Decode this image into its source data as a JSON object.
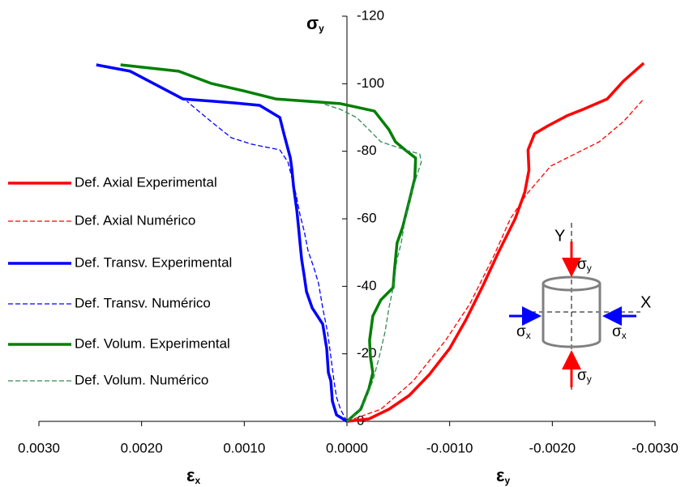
{
  "chart_data": {
    "type": "line",
    "y_label": {
      "symbol": "σ",
      "subscript": "y"
    },
    "x_label_left": {
      "symbol": "ε",
      "subscript": "x"
    },
    "x_label_right": {
      "symbol": "ε",
      "subscript": "y"
    },
    "xlim": [
      0.003,
      -0.003
    ],
    "ylim": [
      0,
      -120
    ],
    "xticks": [
      {
        "value": 0.003,
        "label": "0.0030"
      },
      {
        "value": 0.002,
        "label": "0.0020"
      },
      {
        "value": 0.001,
        "label": "0.0010"
      },
      {
        "value": 0,
        "label": "0.0000"
      },
      {
        "value": -0.001,
        "label": "-0.0010"
      },
      {
        "value": -0.002,
        "label": "-0.0020"
      },
      {
        "value": -0.003,
        "label": "-0.0030"
      }
    ],
    "yticks": [
      0,
      -20,
      -40,
      -60,
      -80,
      -100,
      -120
    ],
    "legend": "left",
    "series": [
      {
        "name": "Def. Axial Experimental",
        "color": "#ff0000",
        "style": "solid",
        "x": [
          0,
          -0.000213,
          -0.000409,
          -0.000606,
          -0.000803,
          -0.001,
          -0.001157,
          -0.001323,
          -0.001472,
          -0.001638,
          -0.001732,
          -0.001772,
          -0.001764,
          -0.001827,
          -0.001961,
          -0.002142,
          -0.002299,
          -0.002535,
          -0.002693,
          -0.00289
        ],
        "values": [
          0,
          -0.72,
          -3.6,
          -7.68,
          -13.9,
          -21.6,
          -30.0,
          -40.1,
          -49.9,
          -60.0,
          -67.9,
          -74.4,
          -80.4,
          -85.2,
          -87.6,
          -90.5,
          -92.4,
          -95.5,
          -100.8,
          -106.1
        ]
      },
      {
        "name": "Def. Axial Numérico",
        "color": "#ff0000",
        "style": "dashed",
        "x": [
          0,
          -0.000331,
          -0.000646,
          -0.000961,
          -0.001197,
          -0.001433,
          -0.001591,
          -0.001748,
          -0.001984,
          -0.00222,
          -0.002457,
          -0.002693,
          -0.00289
        ],
        "values": [
          0,
          -3.6,
          -12.0,
          -24.0,
          -34.8,
          -49.2,
          -60.0,
          -67.2,
          -75.6,
          -79.2,
          -82.8,
          -88.8,
          -95.5
        ]
      },
      {
        "name": "Def. Transv. Experimental",
        "color": "#0000ff",
        "style": "solid",
        "x": [
          0,
          0.000102,
          0.000142,
          0.000157,
          0.000181,
          0.000197,
          0.000236,
          0.000339,
          0.000394,
          0.000417,
          0.000441,
          0.000457,
          0.000472,
          0.000488,
          0.00052,
          0.000535,
          0.000551,
          0.000583,
          0.000614,
          0.000654,
          0.00085,
          0.001087,
          0.001598,
          0.00211,
          0.002441
        ],
        "values": [
          0,
          -1.92,
          -6.0,
          -12.0,
          -14.4,
          -21.6,
          -28.8,
          -33.6,
          -38.4,
          -43.2,
          -48.0,
          -52.8,
          -57.6,
          -62.4,
          -69.6,
          -74.4,
          -78.0,
          -81.6,
          -85.2,
          -90.0,
          -93.6,
          -94.3,
          -95.5,
          -103.7,
          -105.6
        ]
      },
      {
        "name": "Def. Transv. Numérico",
        "color": "#0000ff",
        "style": "dashed",
        "x": [
          0,
          6.3e-05,
          0.000102,
          0.000126,
          0.000157,
          0.000189,
          0.000236,
          0.000276,
          0.000323,
          0.000378,
          0.000417,
          0.000457,
          0.000496,
          0.000535,
          0.000575,
          0.000654,
          0.000929,
          0.001126,
          0.001323,
          0.001559
        ],
        "values": [
          0,
          -3.6,
          -7.2,
          -12.0,
          -19.2,
          -26.4,
          -33.6,
          -40.8,
          -45.6,
          -50.4,
          -56.4,
          -61.2,
          -67.2,
          -72.0,
          -76.8,
          -80.4,
          -82.1,
          -84.0,
          -88.8,
          -94.8
        ]
      },
      {
        "name": "Def. Volum. Experimental",
        "color": "#008000",
        "style": "solid",
        "x": [
          0,
          -0.000134,
          -0.000213,
          -0.000252,
          -0.000228,
          -0.00022,
          -0.000252,
          -0.000331,
          -0.000449,
          -0.000465,
          -0.000488,
          -0.000543,
          -0.000583,
          -0.000622,
          -0.000661,
          -0.000669,
          -0.000567,
          -0.000472,
          -0.000409,
          -0.000268,
          6.3e-05,
          0.000693,
          0.001008,
          0.001323,
          0.001638,
          0.002205
        ],
        "values": [
          0,
          -3.6,
          -9.6,
          -14.4,
          -19.2,
          -24.0,
          -31.2,
          -36.0,
          -39.6,
          -45.6,
          -52.8,
          -57.6,
          -62.4,
          -67.2,
          -72.0,
          -78.0,
          -80.4,
          -82.8,
          -86.4,
          -91.9,
          -94.1,
          -95.5,
          -97.9,
          -100.1,
          -103.7,
          -105.6
        ]
      },
      {
        "name": "Def. Volum. Numérico",
        "color": "#2e8b57",
        "style": "dashed",
        "x": [
          0,
          -9.4e-05,
          -0.000173,
          -0.000252,
          -0.000315,
          -0.00037,
          -0.000409,
          -0.000449,
          -0.000488,
          -0.000528,
          -0.000567,
          -0.000622,
          -0.000685,
          -0.000724,
          -0.000709,
          -0.000567,
          -0.000331,
          -0.000213,
          -9.4e-05,
          6.3e-05,
          0.000236
        ],
        "values": [
          0,
          -2.4,
          -6.0,
          -12.0,
          -19.2,
          -26.4,
          -33.6,
          -39.6,
          -48.0,
          -52.8,
          -60.0,
          -67.2,
          -73.2,
          -76.8,
          -79.2,
          -80.4,
          -82.8,
          -86.4,
          -90.0,
          -92.4,
          -94.1
        ]
      }
    ]
  },
  "inset": {
    "axis_y": "Y",
    "axis_x": "X",
    "sigma": "σ",
    "sub_y": "y",
    "sub_x": "x"
  }
}
